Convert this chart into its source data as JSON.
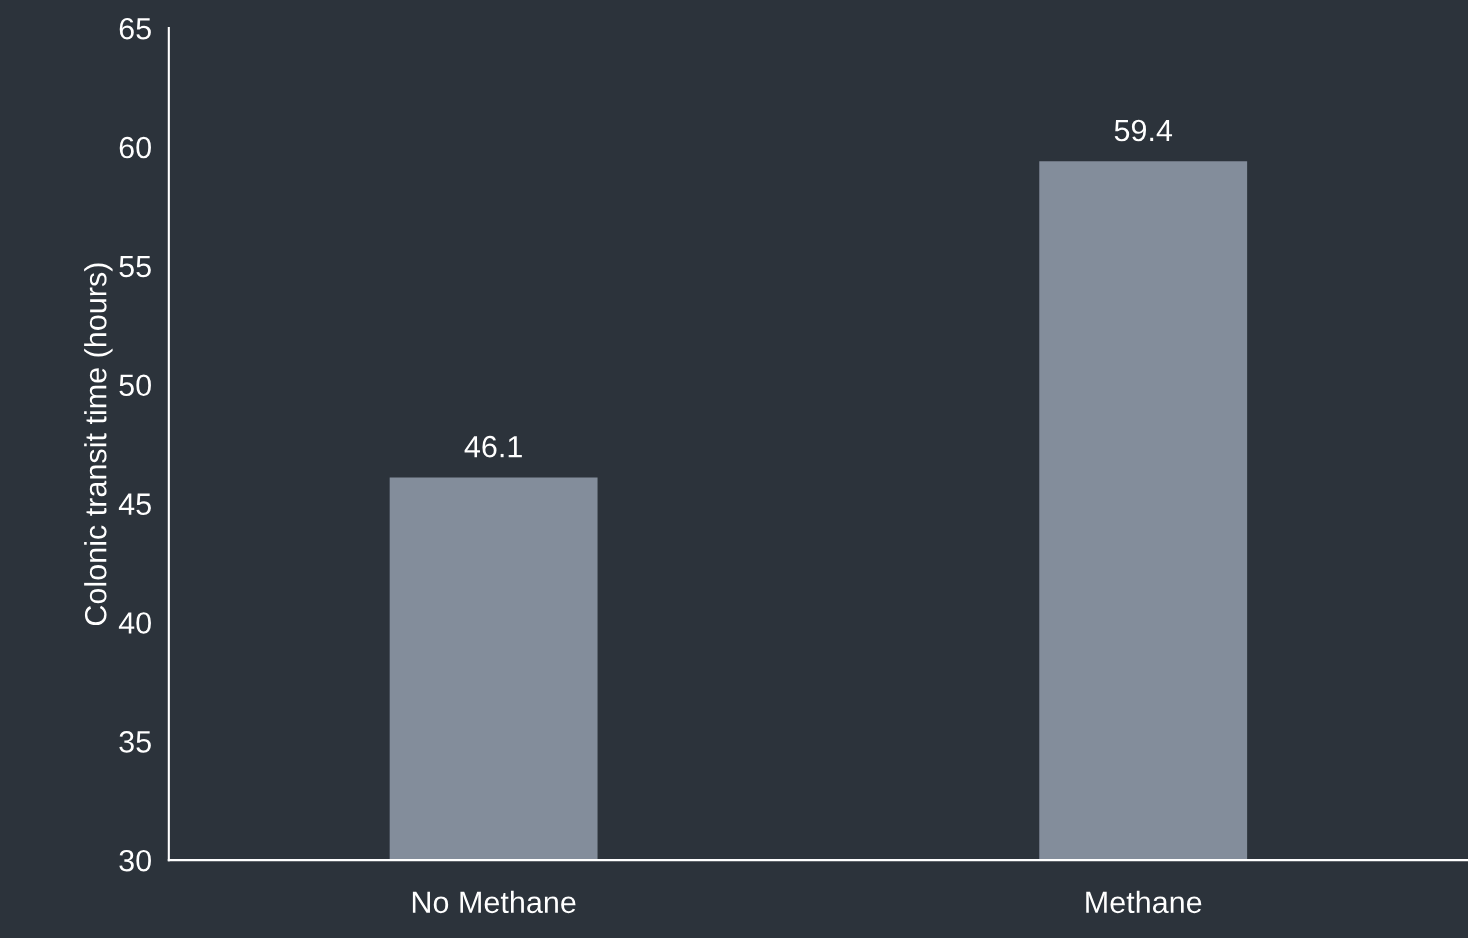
{
  "chart_data": {
    "type": "bar",
    "ylabel": "Colonic transit time (hours)",
    "categories": [
      "No Methane",
      "Methane"
    ],
    "values": [
      46.1,
      59.4
    ],
    "color": "#838d9b",
    "ylim": [
      30,
      65
    ],
    "yticks": [
      30,
      35,
      40,
      45,
      50,
      55,
      60,
      65
    ],
    "data_labels": true,
    "grid": false,
    "legend": false
  }
}
